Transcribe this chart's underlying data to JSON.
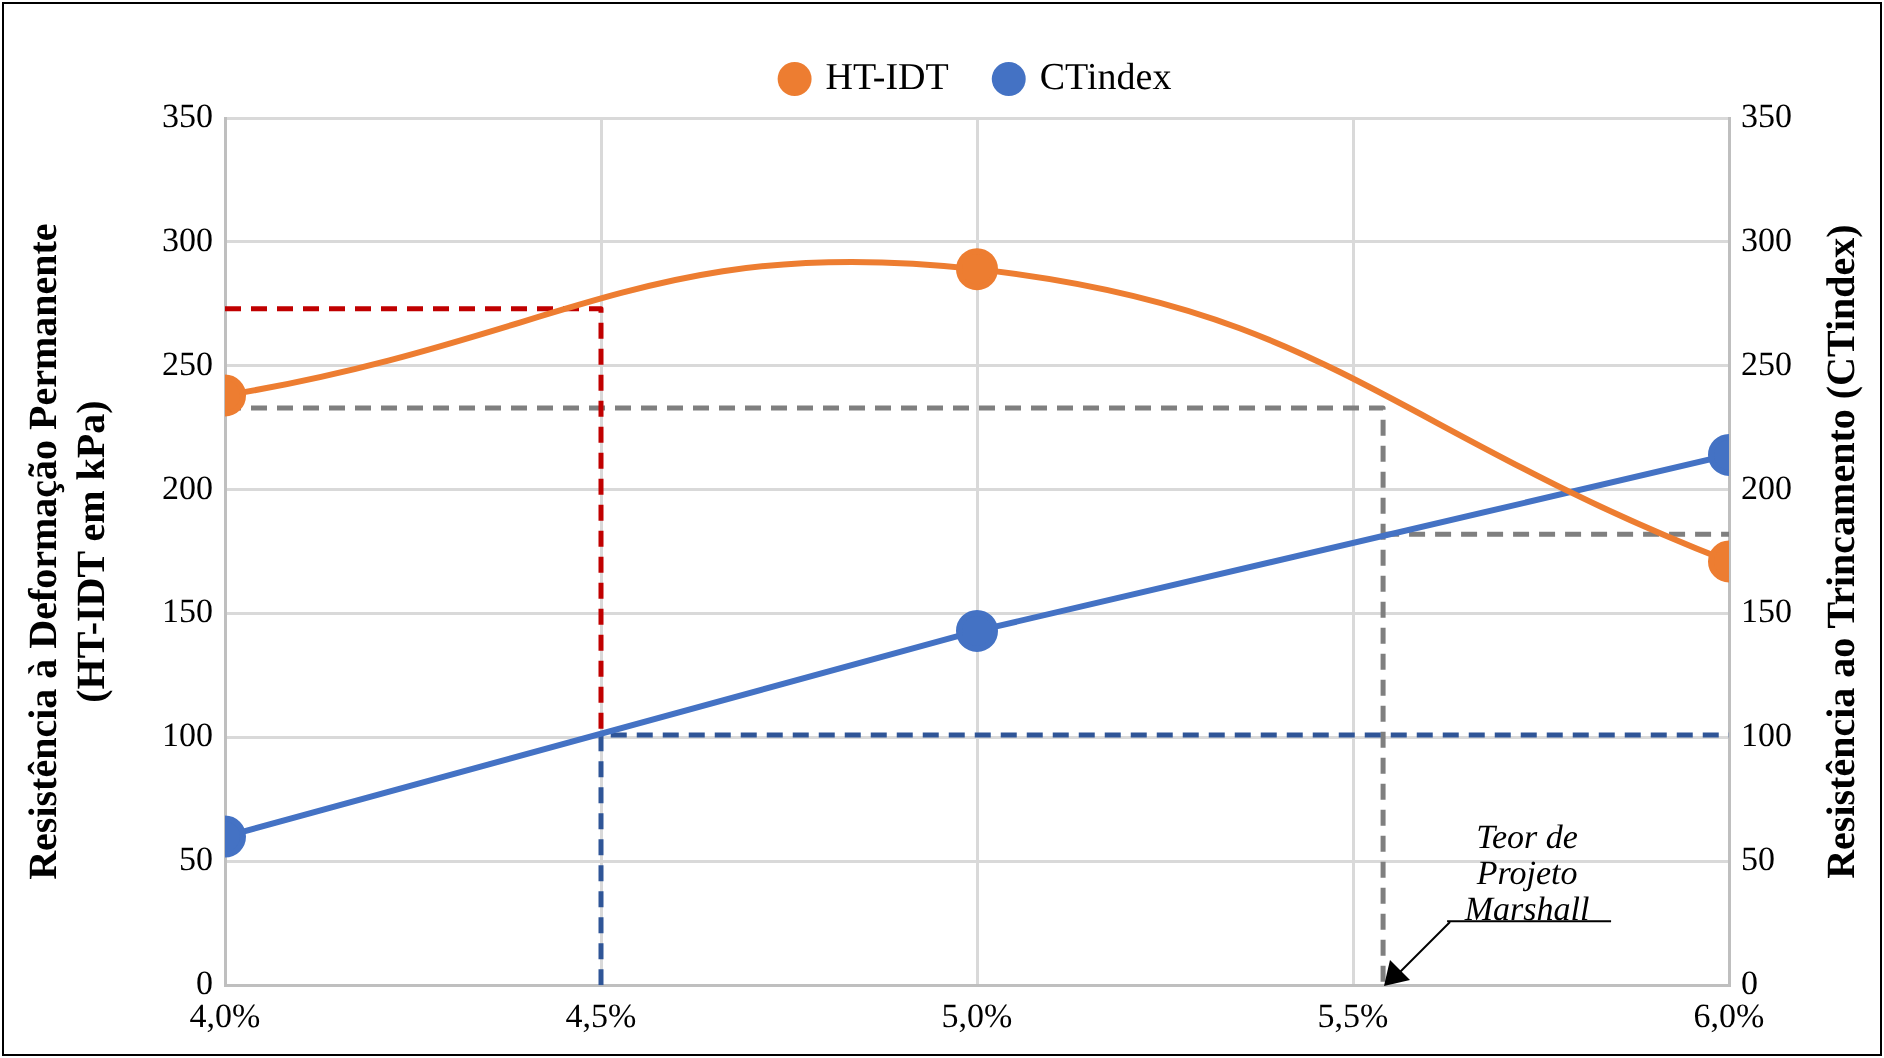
{
  "chart_data": {
    "type": "line",
    "ylabel": "Resistência à Deformação Permanente (HT-IDT em kPa)",
    "y2label": "Resistência ao Trincamento (CTindex)",
    "x": [
      4.0,
      5.0,
      6.0
    ],
    "xlim": [
      4.0,
      6.0
    ],
    "xticks": [
      {
        "value": 4.0,
        "label": "4,0%"
      },
      {
        "value": 4.5,
        "label": "4,5%"
      },
      {
        "value": 5.0,
        "label": "5,0%"
      },
      {
        "value": 5.5,
        "label": "5,5%"
      },
      {
        "value": 6.0,
        "label": "6,0%"
      }
    ],
    "ylim": [
      0,
      350
    ],
    "yticks": [
      0,
      50,
      100,
      150,
      200,
      250,
      300,
      350
    ],
    "y2lim": [
      0,
      350
    ],
    "y2ticks": [
      0,
      50,
      100,
      150,
      200,
      250,
      300,
      350
    ],
    "grid": true,
    "legend": "top",
    "series": [
      {
        "name": "HT-IDT",
        "color": "#ed7d31",
        "values": [
          238,
          289,
          171
        ],
        "marker": "circle",
        "line_style": "solid"
      },
      {
        "name": "CTindex",
        "color": "#4472c4",
        "values": [
          60,
          143,
          214
        ],
        "axis": "y2",
        "marker": "circle",
        "line_style": "solid"
      },
      {
        "color": "#c00000",
        "x": [
          4.0,
          4.5,
          4.5
        ],
        "values": [
          273,
          273,
          101
        ],
        "marker": "none",
        "line_style": "dashed"
      },
      {
        "color": "#2f5597",
        "x": [
          4.5,
          4.5,
          6.0
        ],
        "values": [
          0,
          101,
          101
        ],
        "marker": "none",
        "line_style": "dashed"
      },
      {
        "color": "#7f7f7f",
        "x": [
          4.0,
          5.54,
          5.54
        ],
        "values": [
          233,
          233,
          0
        ],
        "marker": "none",
        "line_style": "dashed"
      },
      {
        "color": "#7f7f7f",
        "x": [
          5.54,
          6.0
        ],
        "values": [
          182,
          182
        ],
        "marker": "none",
        "line_style": "dashed"
      }
    ],
    "annotations": [
      {
        "text": "Teor de Projeto Marshall",
        "x": 5.54,
        "y": 0
      }
    ]
  }
}
